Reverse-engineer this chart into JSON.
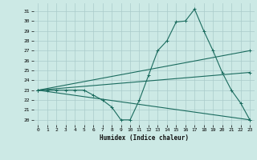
{
  "xlabel": "Humidex (Indice chaleur)",
  "bg_color": "#cce9e5",
  "grid_color": "#aaccca",
  "line_color": "#1a6b5e",
  "xlim": [
    -0.5,
    23.5
  ],
  "ylim": [
    19.5,
    31.8
  ],
  "xticks": [
    0,
    1,
    2,
    3,
    4,
    5,
    6,
    7,
    8,
    9,
    10,
    11,
    12,
    13,
    14,
    15,
    16,
    17,
    18,
    19,
    20,
    21,
    22,
    23
  ],
  "yticks": [
    20,
    21,
    22,
    23,
    24,
    25,
    26,
    27,
    28,
    29,
    30,
    31
  ],
  "line1_x": [
    0,
    1,
    2,
    3,
    4,
    5,
    6,
    7,
    8,
    9,
    10,
    11,
    12,
    13,
    14,
    15,
    16,
    17,
    18,
    19,
    20,
    21,
    22,
    23
  ],
  "line1_y": [
    23,
    23,
    23,
    23,
    23,
    23,
    22.5,
    22,
    21.3,
    20,
    20,
    22,
    24.5,
    27,
    28,
    29.9,
    30,
    31.2,
    29,
    27,
    24.8,
    23,
    21.7,
    20
  ],
  "line2_x": [
    0,
    23
  ],
  "line2_y": [
    23,
    20
  ],
  "line3_x": [
    0,
    23
  ],
  "line3_y": [
    23,
    27
  ],
  "line4_x": [
    0,
    23
  ],
  "line4_y": [
    23,
    24.8
  ]
}
